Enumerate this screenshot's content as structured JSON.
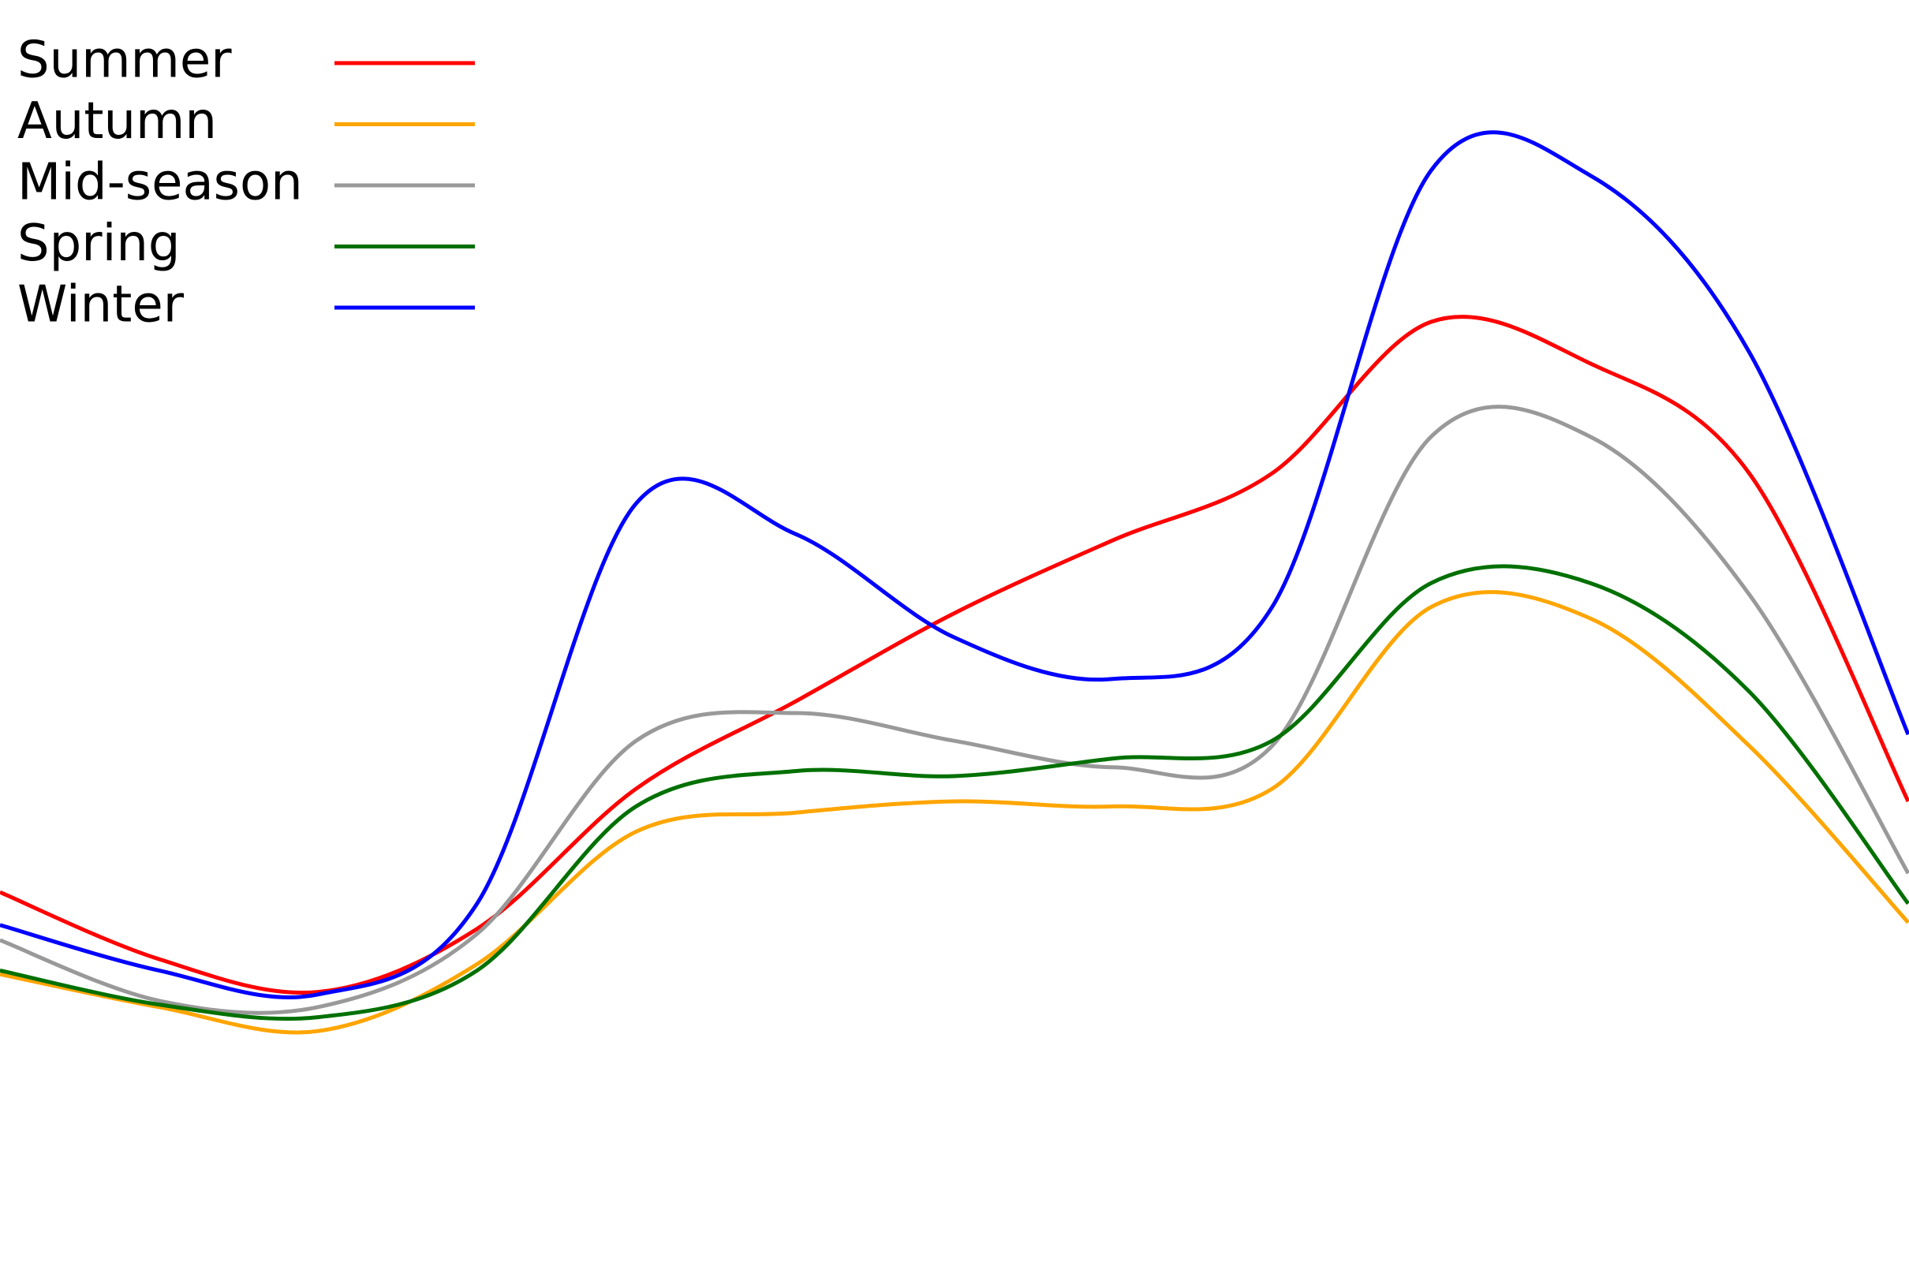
{
  "chart_data": {
    "type": "line",
    "categories": [
      null,
      null,
      null,
      null,
      null,
      null,
      null,
      null,
      null,
      null,
      null,
      null,
      null
    ],
    "ylim": [
      0,
      100
    ],
    "legend": "upper left",
    "grid": false,
    "series": [
      {
        "name": "Summer",
        "color": "#ff0000",
        "values": [
          29.3,
          24.0,
          21.4,
          26.4,
          37.5,
          44.4,
          51.4,
          57.2,
          62.5,
          74.5,
          71.2,
          62.5,
          36.5
        ]
      },
      {
        "name": "Autumn",
        "color": "#ffa500",
        "values": [
          22.8,
          20.2,
          18.3,
          23.6,
          34.1,
          35.6,
          36.5,
          36.1,
          37.5,
          51.9,
          51.0,
          40.9,
          26.9
        ]
      },
      {
        "name": "Mid-season",
        "color": "#999999",
        "values": [
          25.5,
          20.7,
          20.2,
          26.0,
          41.3,
          43.5,
          41.3,
          39.2,
          40.9,
          65.4,
          65.4,
          52.9,
          30.8
        ]
      },
      {
        "name": "Spring",
        "color": "#007000",
        "values": [
          23.1,
          20.4,
          19.4,
          23.1,
          36.1,
          38.9,
          38.5,
          39.9,
          41.3,
          53.8,
          53.8,
          45.2,
          28.4
        ]
      },
      {
        "name": "Winter",
        "color": "#0000ff",
        "values": [
          26.7,
          23.1,
          21.2,
          28.4,
          60.1,
          57.7,
          49.5,
          46.2,
          51.9,
          86.5,
          86.1,
          72.1,
          41.8
        ]
      }
    ]
  }
}
